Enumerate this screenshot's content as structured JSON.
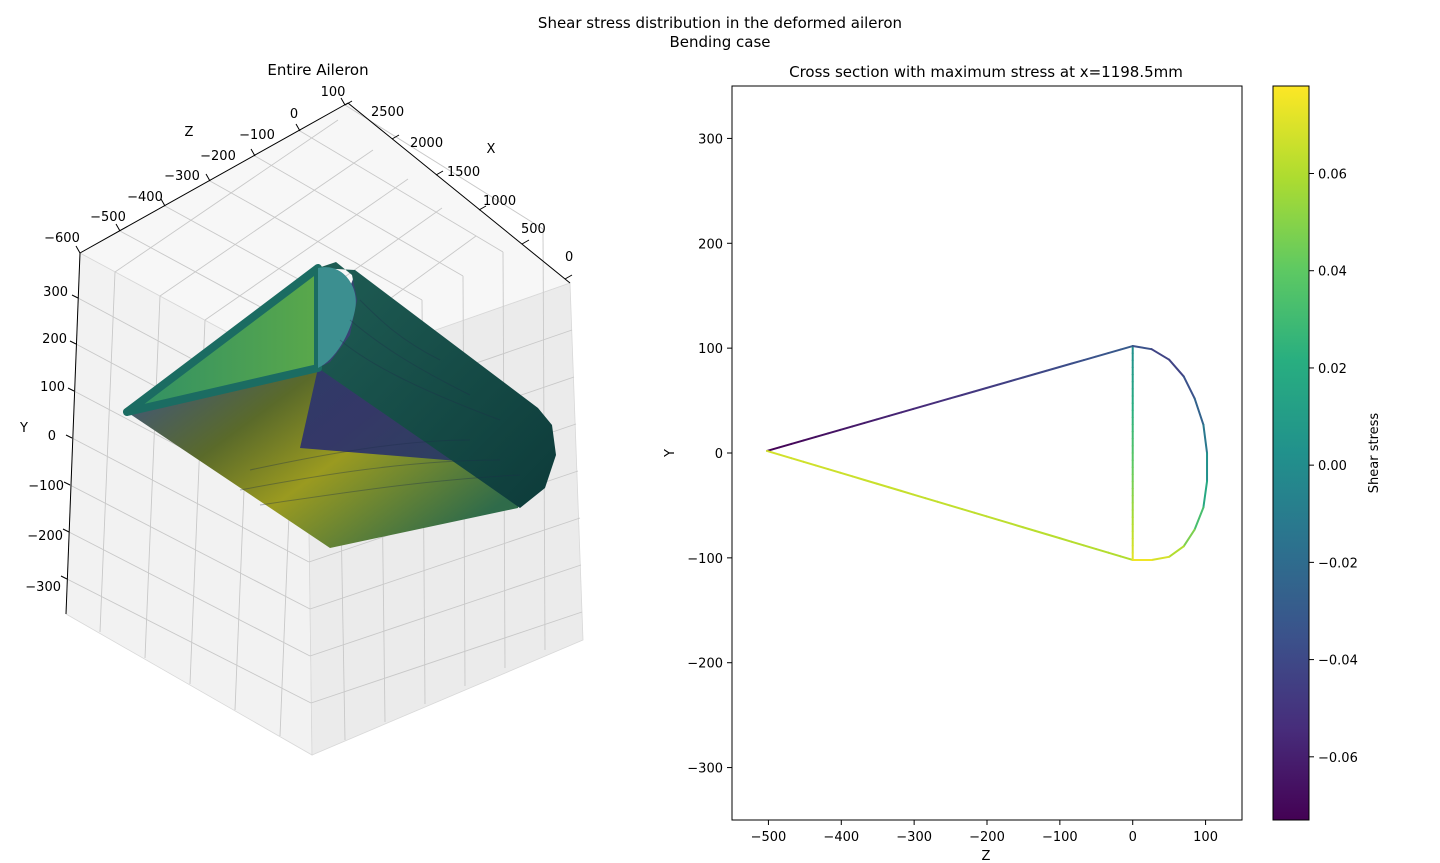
{
  "suptitle": [
    "Shear stress distribution in the deformed aileron",
    "Bending case"
  ],
  "panels": {
    "left_title": "Entire Aileron",
    "right_title": "Cross section with maximum stress at x=1198.5mm"
  },
  "colorbar": {
    "label": "Shear stress",
    "colormap": "viridis",
    "range": [
      -0.073,
      0.078
    ],
    "ticks": [
      "−0.06",
      "−0.04",
      "−0.02",
      "0.00",
      "0.02",
      "0.04",
      "0.06"
    ]
  },
  "chart_data": [
    {
      "type": "surface3d",
      "title": "Entire Aileron",
      "xlabel": "X",
      "ylabel": "Y",
      "zlabel": "Z",
      "x_ticks": [
        "0",
        "500",
        "1000",
        "1500",
        "2000",
        "2500"
      ],
      "y_ticks": [
        "−300",
        "−200",
        "−100",
        "0",
        "100",
        "200",
        "300"
      ],
      "z_ticks": [
        "−600",
        "−500",
        "−400",
        "−300",
        "−200",
        "−100",
        "0",
        "100"
      ],
      "xlim": [
        0,
        2700
      ],
      "ylim": [
        -350,
        350
      ],
      "zlim": [
        -650,
        120
      ],
      "colormap": "viridis"
    },
    {
      "type": "line",
      "title": "Cross section with maximum stress at x=1198.5mm",
      "xlabel": "Z",
      "ylabel": "Y",
      "xlim": [
        -550,
        150
      ],
      "ylim": [
        -350,
        350
      ],
      "x_ticks": [
        "−500",
        "−400",
        "−300",
        "−200",
        "−100",
        "0",
        "100"
      ],
      "y_ticks": [
        "−300",
        "−200",
        "−100",
        "0",
        "100",
        "200",
        "300"
      ],
      "colorbar_label": "Shear stress",
      "segments": [
        {
          "name": "upper skin",
          "z": [
            -502,
            0
          ],
          "y": [
            2,
            102
          ],
          "stress": [
            -0.073,
            -0.03
          ]
        },
        {
          "name": "lower skin",
          "z": [
            -502,
            0
          ],
          "y": [
            2,
            -102
          ],
          "stress": [
            0.068,
            0.06
          ]
        },
        {
          "name": "spar",
          "z": [
            0,
            0
          ],
          "y": [
            102,
            -102
          ],
          "stress": [
            0.0,
            0.072
          ]
        },
        {
          "name": "leading edge",
          "z": [
            0,
            26,
            50,
            70,
            85,
            97,
            102,
            102,
            97,
            85,
            70,
            50,
            26,
            0
          ],
          "y": [
            102,
            99,
            89,
            73,
            52,
            27,
            0,
            -27,
            -52,
            -73,
            -89,
            -99,
            -102,
            -102
          ],
          "stress": [
            -0.03,
            -0.04,
            -0.045,
            -0.04,
            -0.03,
            -0.02,
            -0.005,
            0.01,
            0.025,
            0.04,
            0.055,
            0.065,
            0.072,
            0.078
          ]
        }
      ]
    }
  ]
}
